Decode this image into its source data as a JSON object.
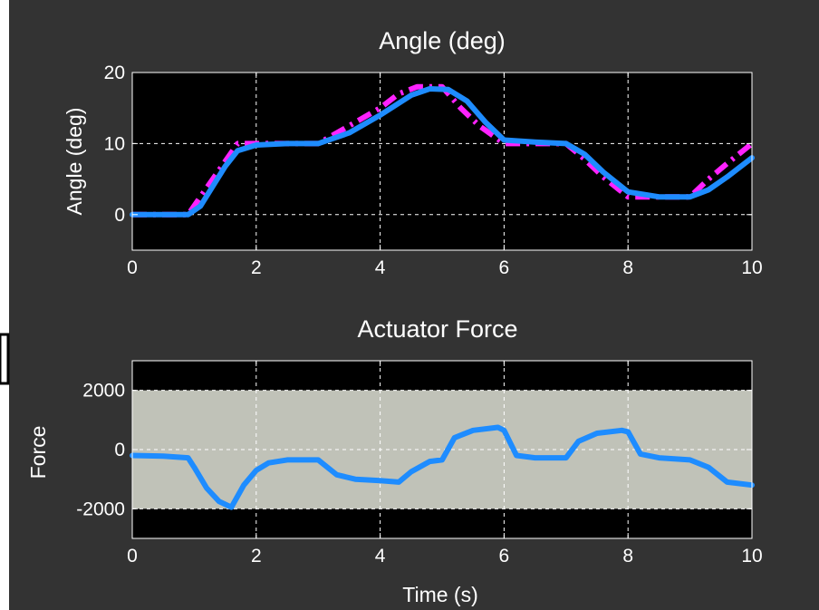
{
  "colors": {
    "figure_bg": "#333333",
    "axes_bg": "#000000",
    "axis_fg": "#ffffff",
    "grid": "#ffffff",
    "band_fill": "#c0c2b8",
    "measured_line": "#1e8cff",
    "reference_line": "#ff22ff"
  },
  "chart_data": [
    {
      "type": "line",
      "title": "Angle (deg)",
      "xlabel": "",
      "ylabel": "Angle (deg)",
      "xlim": [
        0,
        10
      ],
      "ylim": [
        -5,
        20
      ],
      "xticks": [
        0,
        2,
        4,
        6,
        8,
        10
      ],
      "xtick_labels": [
        "0",
        "2",
        "4",
        "6",
        "8",
        "10"
      ],
      "yticks": [
        0,
        10,
        20
      ],
      "ytick_labels": [
        "0",
        "10",
        "20"
      ],
      "grid": true,
      "legend": false,
      "series": [
        {
          "style": "dash-dot",
          "color": "#ff22ff",
          "x": [
            0,
            0.9,
            1.1,
            1.3,
            1.5,
            1.7,
            2.0,
            2.5,
            3.0,
            3.5,
            4.0,
            4.3,
            4.6,
            5.0,
            5.3,
            5.6,
            6.0,
            6.5,
            7.0,
            7.3,
            7.6,
            8.0,
            8.5,
            9.0,
            9.3,
            9.6,
            10.0
          ],
          "y": [
            0,
            0,
            2.5,
            5,
            7.5,
            10,
            10,
            10,
            10,
            12.5,
            15,
            17,
            18,
            18,
            15,
            12.5,
            10,
            10,
            10,
            7.8,
            5.3,
            2.5,
            2.5,
            2.5,
            5,
            7.2,
            10
          ]
        },
        {
          "style": "solid",
          "color": "#1e8cff",
          "x": [
            0,
            0.9,
            1.1,
            1.3,
            1.5,
            1.7,
            2.0,
            2.5,
            3.0,
            3.5,
            4.0,
            4.5,
            4.8,
            5.1,
            5.4,
            5.7,
            6.0,
            6.5,
            7.0,
            7.3,
            7.6,
            8.0,
            8.5,
            9.0,
            9.3,
            9.6,
            10.0
          ],
          "y": [
            0,
            0,
            1.2,
            4,
            6.8,
            9,
            9.8,
            10,
            10,
            11.5,
            14,
            16.8,
            17.7,
            17.6,
            16,
            13,
            10.5,
            10.2,
            10,
            8.5,
            6,
            3.2,
            2.5,
            2.5,
            3.5,
            5.3,
            8
          ]
        }
      ]
    },
    {
      "type": "line",
      "title": "Actuator Force",
      "xlabel": "Time (s)",
      "ylabel": "Force",
      "xlim": [
        0,
        10
      ],
      "ylim": [
        -3000,
        3000
      ],
      "xticks": [
        0,
        2,
        4,
        6,
        8,
        10
      ],
      "xtick_labels": [
        "0",
        "2",
        "4",
        "6",
        "8",
        "10"
      ],
      "yticks": [
        -2000,
        0,
        2000
      ],
      "ytick_labels": [
        "-2000",
        "0",
        "2000"
      ],
      "grid": true,
      "legend": false,
      "band": {
        "y_from": -2000,
        "y_to": 2000,
        "color": "#c0c2b8"
      },
      "series": [
        {
          "style": "solid",
          "color": "#1e8cff",
          "x": [
            0,
            0.5,
            0.9,
            1.0,
            1.2,
            1.4,
            1.6,
            1.8,
            2.0,
            2.2,
            2.5,
            3.0,
            3.3,
            3.6,
            4.0,
            4.3,
            4.5,
            4.8,
            5.0,
            5.2,
            5.5,
            5.9,
            6.0,
            6.2,
            6.5,
            7.0,
            7.2,
            7.5,
            7.9,
            8.0,
            8.2,
            8.5,
            9.0,
            9.3,
            9.6,
            10.0
          ],
          "y": [
            -200,
            -220,
            -280,
            -600,
            -1300,
            -1750,
            -1950,
            -1200,
            -700,
            -450,
            -350,
            -350,
            -850,
            -1000,
            -1050,
            -1100,
            -750,
            -400,
            -350,
            400,
            650,
            750,
            650,
            -200,
            -280,
            -280,
            280,
            550,
            650,
            600,
            -150,
            -280,
            -350,
            -600,
            -1100,
            -1200
          ]
        }
      ]
    }
  ]
}
